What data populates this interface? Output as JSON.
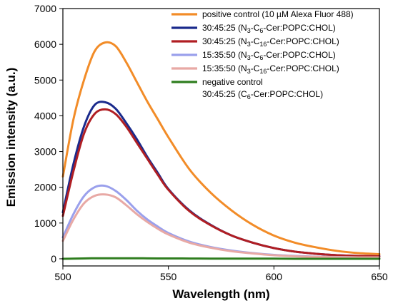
{
  "chart_data": {
    "type": "line",
    "xlabel": "Wavelength (nm)",
    "ylabel": "Emission intensity (a.u.)",
    "xlim": [
      500,
      650
    ],
    "ylim": [
      -200,
      7000
    ],
    "xticks": [
      "500",
      "550",
      "600",
      "650"
    ],
    "yticks": [
      "0",
      "1000",
      "2000",
      "3000",
      "4000",
      "5000",
      "6000",
      "7000"
    ],
    "legend_position": "top-right",
    "x": [
      500,
      505,
      510,
      515,
      520,
      525,
      530,
      535,
      540,
      545,
      550,
      560,
      570,
      580,
      590,
      600,
      610,
      620,
      630,
      640,
      650
    ],
    "series": [
      {
        "name": "positive control (10 µM Alexa Fluor 488)",
        "color": "#f28c28",
        "values": [
          2300,
          3900,
          5000,
          5800,
          6050,
          5950,
          5500,
          4950,
          4400,
          3900,
          3400,
          2500,
          1850,
          1350,
          950,
          650,
          450,
          320,
          220,
          160,
          130
        ]
      },
      {
        "name": "30:45:25 (N3-C6-Cer:POPC:CHOL)",
        "name_parts": [
          "30:45:25 (N",
          "3",
          "-C",
          "6",
          "-Cer:POPC:CHOL)"
        ],
        "color": "#1a2a8c",
        "values": [
          1300,
          2650,
          3700,
          4300,
          4380,
          4200,
          3800,
          3350,
          2850,
          2400,
          1950,
          1350,
          950,
          650,
          450,
          300,
          200,
          140,
          100,
          80,
          70
        ]
      },
      {
        "name": "30:45:25 (N3-C16-Cer:POPC:CHOL)",
        "name_parts": [
          "30:45:25 (N",
          "3",
          "-C",
          "16",
          "-Cer:POPC:CHOL)"
        ],
        "color": "#b01e23",
        "values": [
          1200,
          2450,
          3500,
          4050,
          4180,
          4050,
          3700,
          3250,
          2800,
          2350,
          1930,
          1330,
          940,
          650,
          450,
          300,
          200,
          140,
          100,
          80,
          70
        ]
      },
      {
        "name": "15:35:50 (N3-C6-Cer:POPC:CHOL)",
        "name_parts": [
          "15:35:50 (N",
          "3",
          "-C",
          "6",
          "-Cer:POPC:CHOL)"
        ],
        "color": "#9aa0ec",
        "values": [
          600,
          1250,
          1750,
          2000,
          2040,
          1900,
          1650,
          1350,
          1100,
          900,
          720,
          480,
          330,
          230,
          160,
          110,
          80,
          60,
          50,
          40,
          40
        ]
      },
      {
        "name": "15:35:50 (N3-C16-Cer:POPC:CHOL)",
        "name_parts": [
          "15:35:50 (N",
          "3",
          "-C",
          "16",
          "-Cer:POPC:CHOL)"
        ],
        "color": "#e8a9a5",
        "values": [
          500,
          1100,
          1550,
          1760,
          1800,
          1720,
          1500,
          1250,
          1030,
          840,
          680,
          450,
          310,
          210,
          150,
          100,
          70,
          55,
          45,
          40,
          40
        ]
      },
      {
        "name": "negative control 30:45:25 (C6-Cer:POPC:CHOL)",
        "name_parts": [
          "negative control",
          "30:45:25 (C",
          "6",
          "-Cer:POPC:CHOL)"
        ],
        "color": "#2e7d1e",
        "values": [
          0,
          5,
          10,
          15,
          15,
          15,
          15,
          15,
          12,
          10,
          10,
          8,
          5,
          5,
          5,
          5,
          0,
          0,
          0,
          0,
          0
        ]
      }
    ]
  }
}
